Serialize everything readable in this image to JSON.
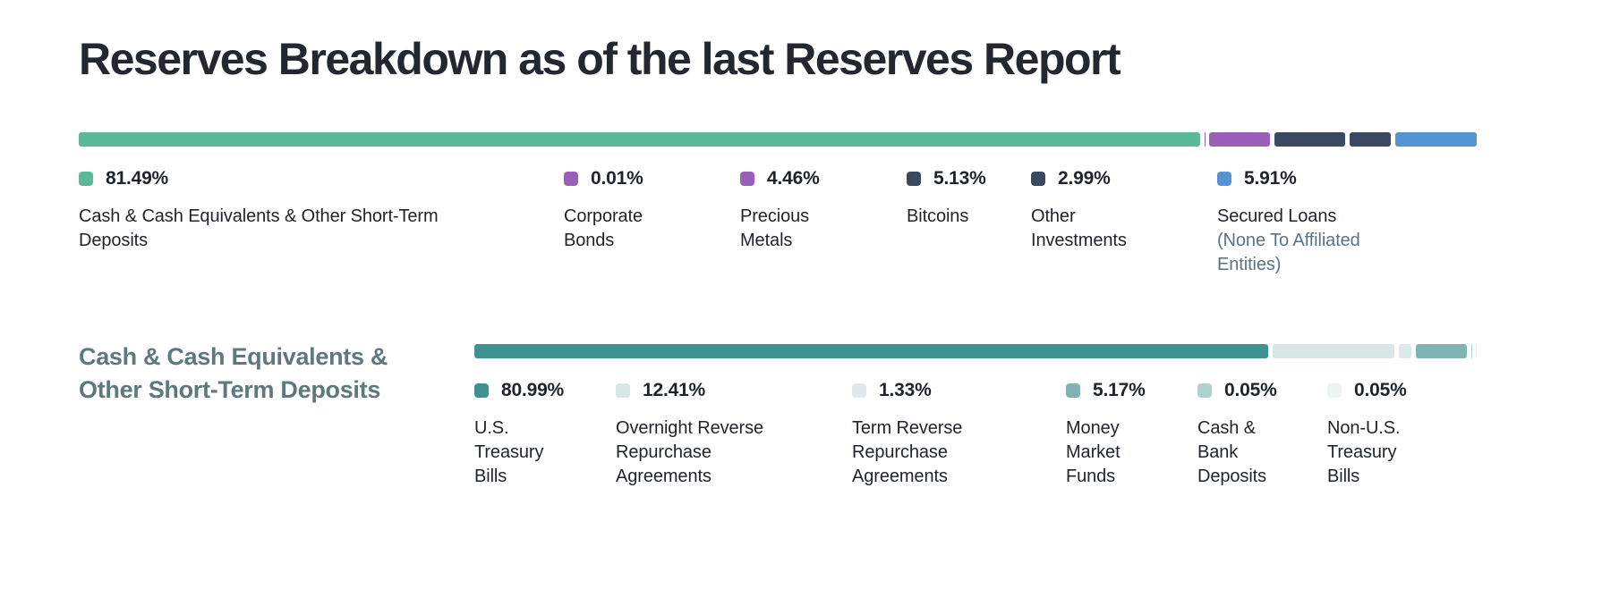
{
  "page": {
    "background": "#ffffff",
    "text_color": "#1f242b",
    "title_color": "#23272f",
    "section_title_color": "#5e797c",
    "sublabel_color": "#5b7384"
  },
  "chart_data": [
    {
      "type": "bar",
      "variant": "horizontal-stacked",
      "title": "Reserves Breakdown as of the last Reserves Report",
      "unit": "%",
      "total": 100,
      "legend_position": "below",
      "categories": [
        "Cash & Cash Equivalents & Other Short-Term Deposits",
        "Corporate Bonds",
        "Precious Metals",
        "Bitcoins",
        "Other Investments",
        "Secured Loans"
      ],
      "values": [
        81.49,
        0.01,
        4.46,
        5.13,
        2.99,
        5.91
      ],
      "segments": [
        {
          "key": "cash-equivalents",
          "label": "Cash & Cash Equivalents & Other Short-Term Deposits",
          "pct_label": "81.49%",
          "value": 81.49,
          "color": "#5bb99a"
        },
        {
          "key": "corporate-bonds",
          "label": "Corporate Bonds",
          "pct_label": "0.01%",
          "value": 0.01,
          "color": "#9a5fb8"
        },
        {
          "key": "precious-metals",
          "label": "Precious Metals",
          "pct_label": "4.46%",
          "value": 4.46,
          "color": "#9a5fb8"
        },
        {
          "key": "bitcoins",
          "label": "Bitcoins",
          "pct_label": "5.13%",
          "value": 5.13,
          "color": "#3b4861"
        },
        {
          "key": "other-investments",
          "label": "Other Investments",
          "pct_label": "2.99%",
          "value": 2.99,
          "color": "#3b4861"
        },
        {
          "key": "secured-loans",
          "label": "Secured Loans",
          "sublabel": "(None To Affiliated Entities)",
          "pct_label": "5.91%",
          "value": 5.91,
          "color": "#5494d2"
        }
      ]
    },
    {
      "type": "bar",
      "variant": "horizontal-stacked",
      "title": "Cash & Cash Equivalents & Other Short-Term Deposits",
      "unit": "%",
      "total": 100,
      "legend_position": "below",
      "categories": [
        "U.S. Treasury Bills",
        "Overnight Reverse Repurchase Agreements",
        "Term Reverse Repurchase Agreements",
        "Money Market Funds",
        "Cash & Bank Deposits",
        "Non-U.S. Treasury Bills"
      ],
      "values": [
        80.99,
        12.41,
        1.33,
        5.17,
        0.05,
        0.05
      ],
      "segments": [
        {
          "key": "us-treasury-bills",
          "label": "U.S. Treasury Bills",
          "pct_label": "80.99%",
          "value": 80.99,
          "color": "#3f9292"
        },
        {
          "key": "overnight-reverse-repurchase",
          "label": "Overnight Reverse Repurchase Agreements",
          "pct_label": "12.41%",
          "value": 12.41,
          "color": "#d8e7e6"
        },
        {
          "key": "term-reverse-repurchase",
          "label": "Term Reverse Repurchase Agreements",
          "pct_label": "1.33%",
          "value": 1.33,
          "color": "#dcebea"
        },
        {
          "key": "money-market-funds",
          "label": "Money Market Funds",
          "pct_label": "5.17%",
          "value": 5.17,
          "color": "#80b3b3"
        },
        {
          "key": "cash-bank-deposits",
          "label": "Cash & Bank Deposits",
          "pct_label": "0.05%",
          "value": 0.05,
          "color": "#afd2d0"
        },
        {
          "key": "non-us-treasury-bills",
          "label": "Non-U.S. Treasury Bills",
          "pct_label": "0.05%",
          "value": 0.05,
          "color": "#ecf4f2"
        }
      ]
    }
  ]
}
